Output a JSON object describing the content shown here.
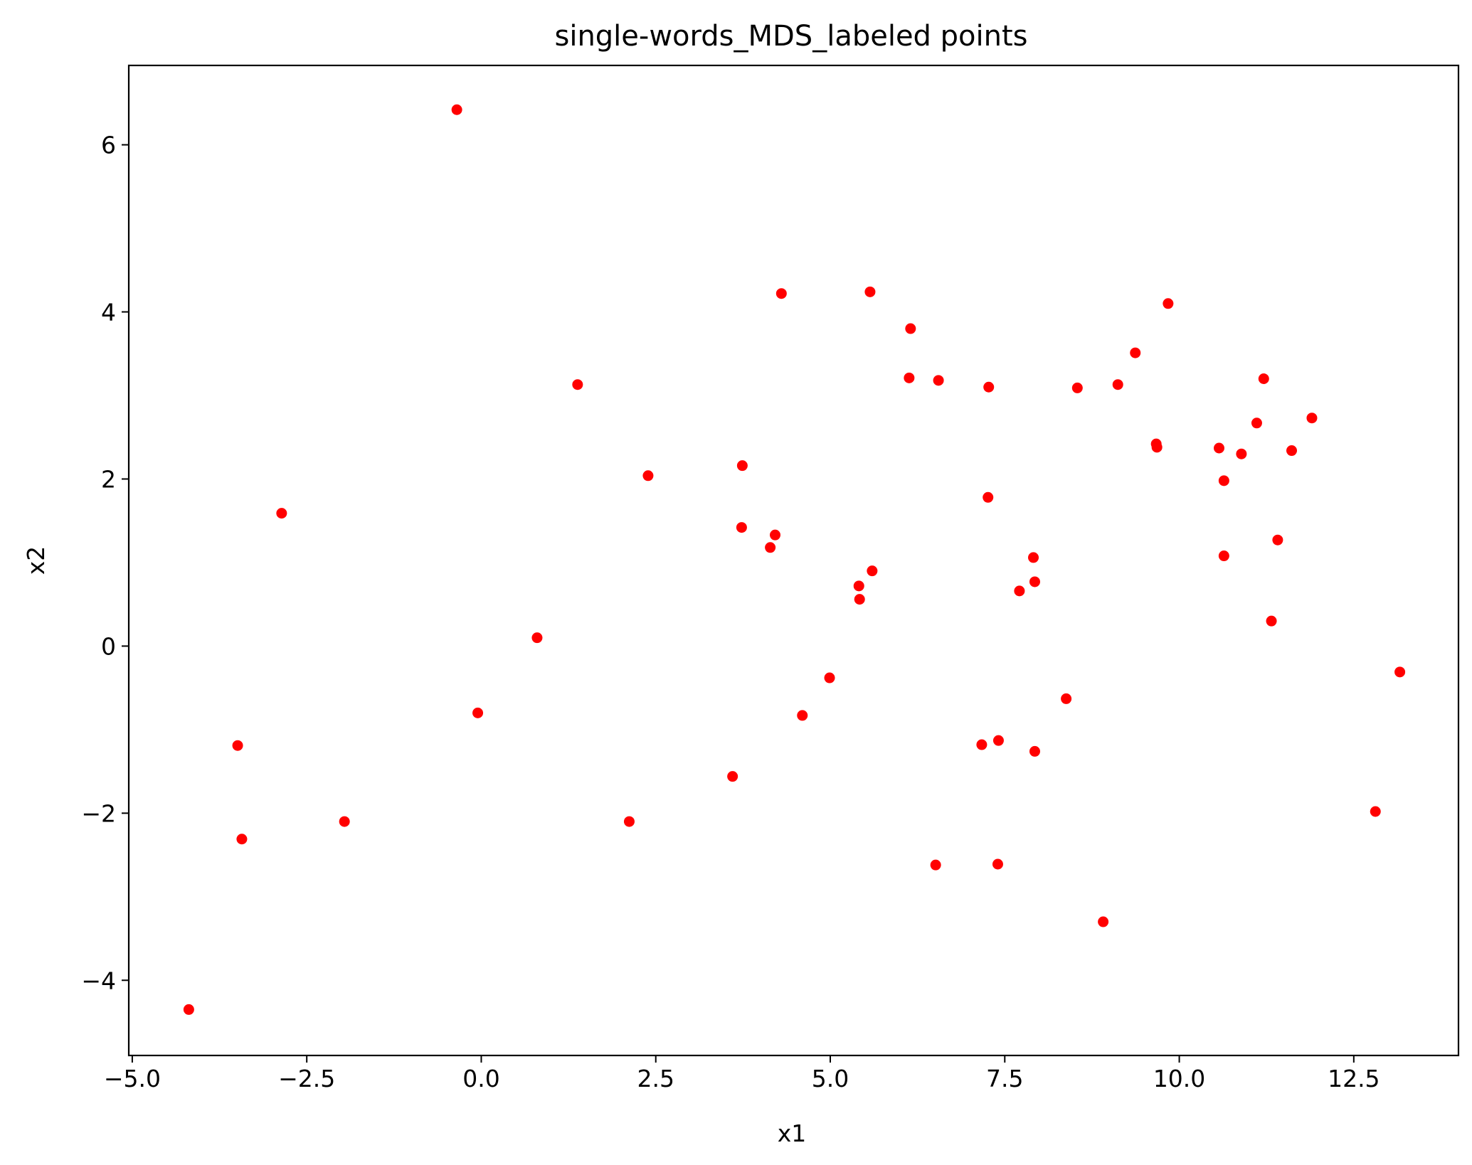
{
  "chart_data": {
    "type": "scatter",
    "title": "single-words_MDS_labeled points",
    "xlabel": "x1",
    "ylabel": "x2",
    "xlim": [
      -5.05,
      14.0
    ],
    "ylim": [
      -4.9,
      6.95
    ],
    "grid": false,
    "legend": "none",
    "marker_color": "#ff0000",
    "x_ticks": [
      {
        "value": -5.0,
        "label": "−5.0"
      },
      {
        "value": -2.5,
        "label": "−2.5"
      },
      {
        "value": 0.0,
        "label": "0.0"
      },
      {
        "value": 2.5,
        "label": "2.5"
      },
      {
        "value": 5.0,
        "label": "5.0"
      },
      {
        "value": 7.5,
        "label": "7.5"
      },
      {
        "value": 10.0,
        "label": "10.0"
      },
      {
        "value": 12.5,
        "label": "12.5"
      }
    ],
    "y_ticks": [
      {
        "value": -4,
        "label": "−4"
      },
      {
        "value": -2,
        "label": "−2"
      },
      {
        "value": 0,
        "label": "0"
      },
      {
        "value": 2,
        "label": "2"
      },
      {
        "value": 4,
        "label": "4"
      },
      {
        "value": 6,
        "label": "6"
      }
    ],
    "points": [
      {
        "x": -0.35,
        "y": 6.42
      },
      {
        "x": 4.3,
        "y": 4.22
      },
      {
        "x": 5.57,
        "y": 4.24
      },
      {
        "x": 9.84,
        "y": 4.1
      },
      {
        "x": 6.15,
        "y": 3.8
      },
      {
        "x": 9.37,
        "y": 3.51
      },
      {
        "x": 1.38,
        "y": 3.13
      },
      {
        "x": 6.13,
        "y": 3.21
      },
      {
        "x": 6.55,
        "y": 3.18
      },
      {
        "x": 7.27,
        "y": 3.1
      },
      {
        "x": 8.54,
        "y": 3.09
      },
      {
        "x": 9.12,
        "y": 3.13
      },
      {
        "x": 11.21,
        "y": 3.2
      },
      {
        "x": 11.11,
        "y": 2.67
      },
      {
        "x": 11.9,
        "y": 2.73
      },
      {
        "x": 9.67,
        "y": 2.42
      },
      {
        "x": 9.68,
        "y": 2.38
      },
      {
        "x": 10.57,
        "y": 2.37
      },
      {
        "x": 10.89,
        "y": 2.3
      },
      {
        "x": 11.61,
        "y": 2.34
      },
      {
        "x": 10.64,
        "y": 1.98
      },
      {
        "x": 2.39,
        "y": 2.04
      },
      {
        "x": 3.74,
        "y": 2.16
      },
      {
        "x": -2.86,
        "y": 1.59
      },
      {
        "x": 7.26,
        "y": 1.78
      },
      {
        "x": 3.73,
        "y": 1.42
      },
      {
        "x": 4.21,
        "y": 1.33
      },
      {
        "x": 4.14,
        "y": 1.18
      },
      {
        "x": 7.91,
        "y": 1.06
      },
      {
        "x": 10.64,
        "y": 1.08
      },
      {
        "x": 11.41,
        "y": 1.27
      },
      {
        "x": 5.6,
        "y": 0.9
      },
      {
        "x": 5.41,
        "y": 0.72
      },
      {
        "x": 5.42,
        "y": 0.56
      },
      {
        "x": 7.93,
        "y": 0.77
      },
      {
        "x": 7.71,
        "y": 0.66
      },
      {
        "x": 11.32,
        "y": 0.3
      },
      {
        "x": 0.8,
        "y": 0.1
      },
      {
        "x": 13.16,
        "y": -0.31
      },
      {
        "x": 4.99,
        "y": -0.38
      },
      {
        "x": 8.38,
        "y": -0.63
      },
      {
        "x": -0.05,
        "y": -0.8
      },
      {
        "x": 4.6,
        "y": -0.83
      },
      {
        "x": -3.49,
        "y": -1.19
      },
      {
        "x": 7.17,
        "y": -1.18
      },
      {
        "x": 7.41,
        "y": -1.13
      },
      {
        "x": 7.93,
        "y": -1.26
      },
      {
        "x": 3.6,
        "y": -1.56
      },
      {
        "x": -3.43,
        "y": -2.31
      },
      {
        "x": -1.96,
        "y": -2.1
      },
      {
        "x": 2.12,
        "y": -2.1
      },
      {
        "x": 12.81,
        "y": -1.98
      },
      {
        "x": 6.51,
        "y": -2.62
      },
      {
        "x": 7.4,
        "y": -2.61
      },
      {
        "x": 8.91,
        "y": -3.3
      },
      {
        "x": -4.19,
        "y": -4.35
      }
    ]
  }
}
